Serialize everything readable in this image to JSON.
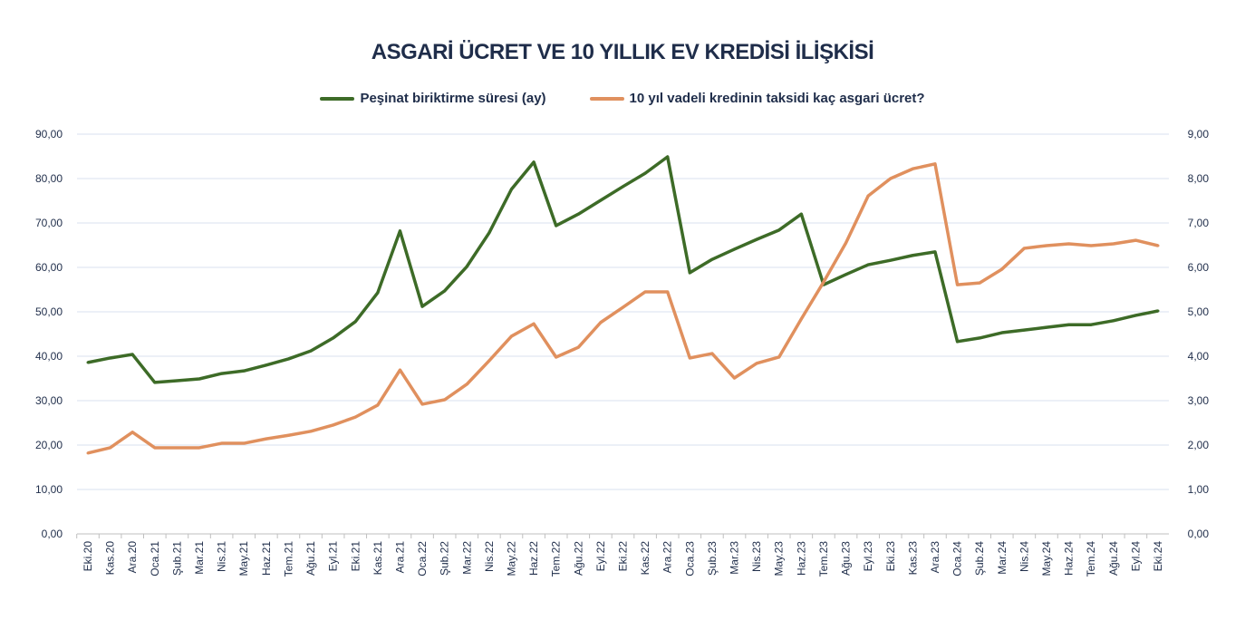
{
  "chart_data": {
    "type": "line",
    "title": "ASGARİ ÜCRET VE 10 YILLIK EV KREDİSİ İLİŞKİSİ",
    "legend_position": "top",
    "grid": true,
    "categories": [
      "Eki.20",
      "Kas.20",
      "Ara.20",
      "Oca.21",
      "Şub.21",
      "Mar.21",
      "Nis.21",
      "May.21",
      "Haz.21",
      "Tem.21",
      "Ağu.21",
      "Eyl.21",
      "Eki.21",
      "Kas.21",
      "Ara.21",
      "Oca.22",
      "Şub.22",
      "Mar.22",
      "Nis.22",
      "May.22",
      "Haz.22",
      "Tem.22",
      "Ağu.22",
      "Eyl.22",
      "Eki.22",
      "Kas.22",
      "Ara.22",
      "Oca.23",
      "Şub.23",
      "Mar.23",
      "Nis.23",
      "May.23",
      "Haz.23",
      "Tem.23",
      "Ağu.23",
      "Eyl.23",
      "Eki.23",
      "Kas.23",
      "Ara.23",
      "Oca.24",
      "Şub.24",
      "Mar.24",
      "Nis.24",
      "May.24",
      "Haz.24",
      "Tem.24",
      "Ağu.24",
      "Eyl.24",
      "Eki.24"
    ],
    "y_left": {
      "range": [
        0,
        90
      ],
      "ticks": [
        "0,00",
        "10,00",
        "20,00",
        "30,00",
        "40,00",
        "50,00",
        "60,00",
        "70,00",
        "80,00",
        "90,00"
      ]
    },
    "y_right": {
      "range": [
        0,
        9
      ],
      "ticks": [
        "0,00",
        "1,00",
        "2,00",
        "3,00",
        "4,00",
        "5,00",
        "6,00",
        "7,00",
        "8,00",
        "9,00"
      ]
    },
    "series": [
      {
        "name": "Peşinat biriktirme süresi (ay)",
        "axis": "left",
        "color": "#3d6b27",
        "values": [
          38.6,
          39.6,
          40.4,
          34.1,
          34.5,
          34.9,
          36.1,
          36.7,
          38.0,
          39.4,
          41.2,
          44.1,
          47.8,
          54.3,
          68.2,
          51.2,
          54.7,
          60.2,
          67.8,
          77.6,
          83.7,
          69.4,
          72.0,
          75.1,
          78.2,
          81.2,
          84.9,
          58.8,
          61.8,
          64.1,
          66.3,
          68.4,
          72.0,
          56.1,
          58.4,
          60.6,
          61.6,
          62.7,
          63.5,
          43.3,
          44.1,
          45.3,
          45.9,
          46.5,
          47.1,
          47.1,
          48.0,
          49.2,
          50.2
        ]
      },
      {
        "name": "10 yıl vadeli kredinin taksidi kaç asgari ücret?",
        "axis": "right",
        "color": "#e0905e",
        "values": [
          1.82,
          1.94,
          2.29,
          1.94,
          1.94,
          1.94,
          2.04,
          2.04,
          2.14,
          2.22,
          2.31,
          2.45,
          2.63,
          2.9,
          3.69,
          2.92,
          3.02,
          3.37,
          3.9,
          4.45,
          4.73,
          3.98,
          4.2,
          4.76,
          5.1,
          5.45,
          5.45,
          3.96,
          4.06,
          3.51,
          3.84,
          3.98,
          4.84,
          5.67,
          6.55,
          7.61,
          8.0,
          8.22,
          8.33,
          5.61,
          5.65,
          5.96,
          6.43,
          6.49,
          6.53,
          6.49,
          6.53,
          6.61,
          6.49
        ]
      }
    ]
  }
}
